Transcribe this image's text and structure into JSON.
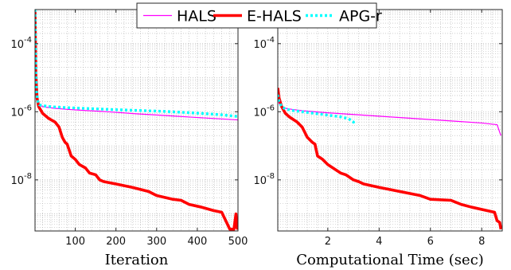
{
  "chart_data": [
    {
      "type": "line",
      "title": "",
      "xlabel": "Iteration",
      "ylabel": "",
      "xlim": [
        1,
        500
      ],
      "ylim_exponents": [
        -9.5,
        -3
      ],
      "yscale": "log",
      "grid": true,
      "xticks": [
        100,
        200,
        300,
        400,
        500
      ],
      "xtick_labels": [
        "100",
        "200",
        "300",
        "400",
        "500"
      ],
      "yticks": [
        -8,
        -6,
        -4
      ],
      "ytick_labels": [
        {
          "base": "10",
          "exp": "-8"
        },
        {
          "base": "10",
          "exp": "-6"
        },
        {
          "base": "10",
          "exp": "-4"
        }
      ],
      "series": [
        {
          "name": "HALS",
          "x": [
            1,
            2,
            3,
            5,
            8,
            12,
            20,
            30,
            50,
            80,
            120,
            180,
            250,
            320,
            400,
            460,
            500
          ],
          "log10_y": [
            -3.05,
            -4.2,
            -4.95,
            -5.45,
            -5.7,
            -5.8,
            -5.85,
            -5.87,
            -5.9,
            -5.93,
            -5.96,
            -6.0,
            -6.06,
            -6.11,
            -6.17,
            -6.21,
            -6.24
          ]
        },
        {
          "name": "E-HALS",
          "x": [
            1,
            3,
            6,
            10,
            20,
            35,
            50,
            60,
            68,
            75,
            80,
            90,
            100,
            110,
            125,
            135,
            150,
            160,
            170,
            200,
            240,
            280,
            300,
            340,
            360,
            380,
            410,
            440,
            460,
            470,
            480,
            485,
            490,
            495,
            497,
            500
          ],
          "log10_y": [
            -3.05,
            -4.9,
            -5.6,
            -5.85,
            -6.05,
            -6.2,
            -6.3,
            -6.45,
            -6.75,
            -6.9,
            -6.95,
            -7.3,
            -7.4,
            -7.55,
            -7.65,
            -7.8,
            -7.85,
            -8.0,
            -8.05,
            -8.12,
            -8.22,
            -8.34,
            -8.46,
            -8.57,
            -8.6,
            -8.72,
            -8.8,
            -8.9,
            -8.95,
            -9.2,
            -9.45,
            -9.45,
            -9.45,
            -9.0,
            -9.4,
            -9.45
          ]
        },
        {
          "name": "APG-r",
          "x": [
            1,
            2,
            3,
            5,
            8,
            12,
            20,
            30,
            50,
            80,
            120,
            180,
            250,
            320,
            400,
            460,
            500
          ],
          "log10_y": [
            -3.0,
            -4.1,
            -4.9,
            -5.45,
            -5.7,
            -5.8,
            -5.82,
            -5.84,
            -5.86,
            -5.88,
            -5.9,
            -5.93,
            -5.96,
            -5.99,
            -6.04,
            -6.09,
            -6.14
          ]
        }
      ]
    },
    {
      "type": "line",
      "title": "",
      "xlabel": "Computational Time (sec)",
      "ylabel": "",
      "xlim": [
        0.05,
        8.8
      ],
      "ylim_exponents": [
        -9.5,
        -3
      ],
      "yscale": "log",
      "grid": true,
      "xticks": [
        2,
        4,
        6,
        8
      ],
      "xtick_labels": [
        "2",
        "4",
        "6",
        "8"
      ],
      "yticks": [
        -8,
        -6,
        -4
      ],
      "ytick_labels": [
        {
          "base": "10",
          "exp": "-8"
        },
        {
          "base": "10",
          "exp": "-6"
        },
        {
          "base": "10",
          "exp": "-4"
        }
      ],
      "series": [
        {
          "name": "HALS",
          "x": [
            0.05,
            0.1,
            0.2,
            0.35,
            0.6,
            1.0,
            2.0,
            3.0,
            4.0,
            5.0,
            6.0,
            7.0,
            8.0,
            8.6,
            8.7,
            8.75
          ],
          "log10_y": [
            -5.6,
            -5.75,
            -5.85,
            -5.9,
            -5.93,
            -5.97,
            -6.03,
            -6.08,
            -6.13,
            -6.18,
            -6.23,
            -6.28,
            -6.33,
            -6.38,
            -6.6,
            -6.7
          ]
        },
        {
          "name": "E-HALS",
          "x": [
            0.05,
            0.1,
            0.2,
            0.35,
            0.5,
            0.8,
            1.0,
            1.2,
            1.4,
            1.5,
            1.6,
            1.8,
            2.0,
            2.2,
            2.5,
            2.7,
            3.0,
            3.2,
            3.4,
            4.0,
            4.8,
            5.6,
            6.0,
            6.8,
            7.2,
            7.6,
            8.2,
            8.5,
            8.6,
            8.7,
            8.75
          ],
          "log10_y": [
            -5.3,
            -5.6,
            -5.85,
            -6.05,
            -6.15,
            -6.3,
            -6.45,
            -6.75,
            -6.9,
            -6.95,
            -7.3,
            -7.4,
            -7.55,
            -7.65,
            -7.8,
            -7.85,
            -8.0,
            -8.05,
            -8.12,
            -8.22,
            -8.34,
            -8.46,
            -8.57,
            -8.6,
            -8.72,
            -8.8,
            -8.9,
            -8.95,
            -9.2,
            -9.25,
            -9.45
          ]
        },
        {
          "name": "APG-r",
          "x": [
            0.05,
            0.1,
            0.2,
            0.35,
            0.6,
            1.0,
            1.5,
            2.0,
            2.5,
            2.8,
            3.0,
            3.05
          ],
          "log10_y": [
            -5.5,
            -5.7,
            -5.85,
            -5.92,
            -5.96,
            -6.0,
            -6.05,
            -6.1,
            -6.15,
            -6.2,
            -6.3,
            -6.4
          ]
        }
      ]
    }
  ],
  "legend": {
    "position": "top-center",
    "items": [
      {
        "label": "HALS",
        "color": "#ff00ff",
        "style": "solid",
        "width": 1
      },
      {
        "label": "E-HALS",
        "color": "#ff0000",
        "style": "solid",
        "width": 4
      },
      {
        "label": "APG-r",
        "color": "#00ffff",
        "style": "dotted",
        "width": 4
      }
    ]
  },
  "colors": {
    "HALS": "#ff00ff",
    "E-HALS": "#ff0000",
    "APG-r": "#00ffff",
    "grid": "#b0b0b0",
    "axis": "#262626"
  }
}
